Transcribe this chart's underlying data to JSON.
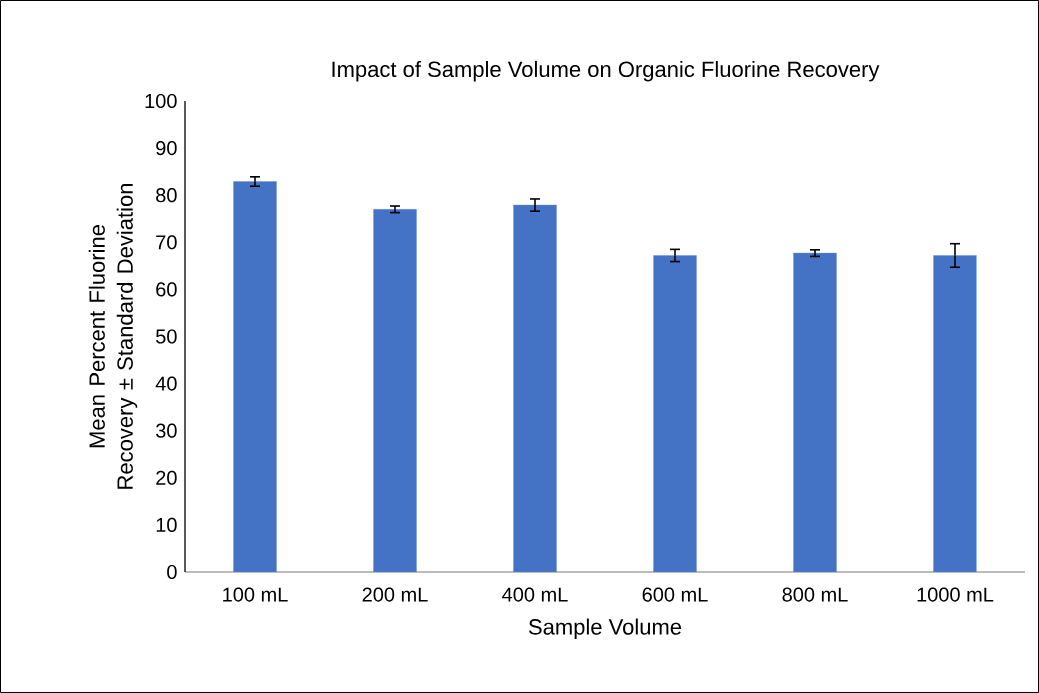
{
  "chart_data": {
    "type": "bar",
    "title": "Impact of Sample Volume on Organic Fluorine Recovery",
    "xlabel": "Sample Volume",
    "ylabel": "Mean Percent Fluorine Recovery ± Standard Deviation",
    "categories": [
      "100 mL",
      "200 mL",
      "400 mL",
      "600 mL",
      "800 mL",
      "1000 mL"
    ],
    "values": [
      82.9,
      77.0,
      77.9,
      67.2,
      67.7,
      67.2
    ],
    "errors": [
      1.0,
      0.7,
      1.3,
      1.3,
      0.7,
      2.5
    ],
    "color": "#4472c4",
    "ylim": [
      0,
      100
    ],
    "yticks": [
      0,
      10,
      20,
      30,
      40,
      50,
      60,
      70,
      80,
      90,
      100
    ],
    "grid": false
  }
}
